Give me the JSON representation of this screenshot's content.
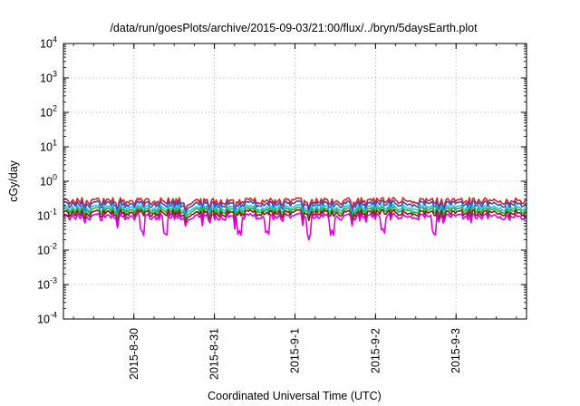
{
  "chart_data": {
    "type": "area",
    "title": "/data/run/goesPlots/archive/2015-09-03/21:00/flux/../bryn/5daysEarth.plot",
    "xlabel": "Coordinated Universal Time (UTC)",
    "ylabel": "cGy/day",
    "yscale": "log",
    "ylim": [
      0.0001,
      10000
    ],
    "y_ticks": [
      {
        "base": "10",
        "exp": "4"
      },
      {
        "base": "10",
        "exp": "3"
      },
      {
        "base": "10",
        "exp": "2"
      },
      {
        "base": "10",
        "exp": "1"
      },
      {
        "base": "10",
        "exp": "0"
      },
      {
        "base": "10",
        "exp": "-1"
      },
      {
        "base": "10",
        "exp": "-2"
      },
      {
        "base": "10",
        "exp": "-3"
      },
      {
        "base": "10",
        "exp": "-4"
      }
    ],
    "x_start": "2015-08-29 03:00",
    "x_end": "2015-09-03 21:00",
    "x_ticks": [
      "2015-8-30",
      "2015-8-31",
      "2015-9-1",
      "2015-9-2",
      "2015-9-3"
    ],
    "grid": true,
    "legend": "none",
    "series": [
      {
        "color": "#e0201c",
        "level": 0.27
      },
      {
        "color": "#2a4fe0",
        "level": 0.22
      },
      {
        "color": "#20c8e8",
        "level": 0.17
      },
      {
        "color": "#30b030",
        "level": 0.145
      },
      {
        "color": "#8a1a10",
        "level": 0.12
      },
      {
        "color": "#e000e0",
        "level": 0.095
      }
    ]
  }
}
